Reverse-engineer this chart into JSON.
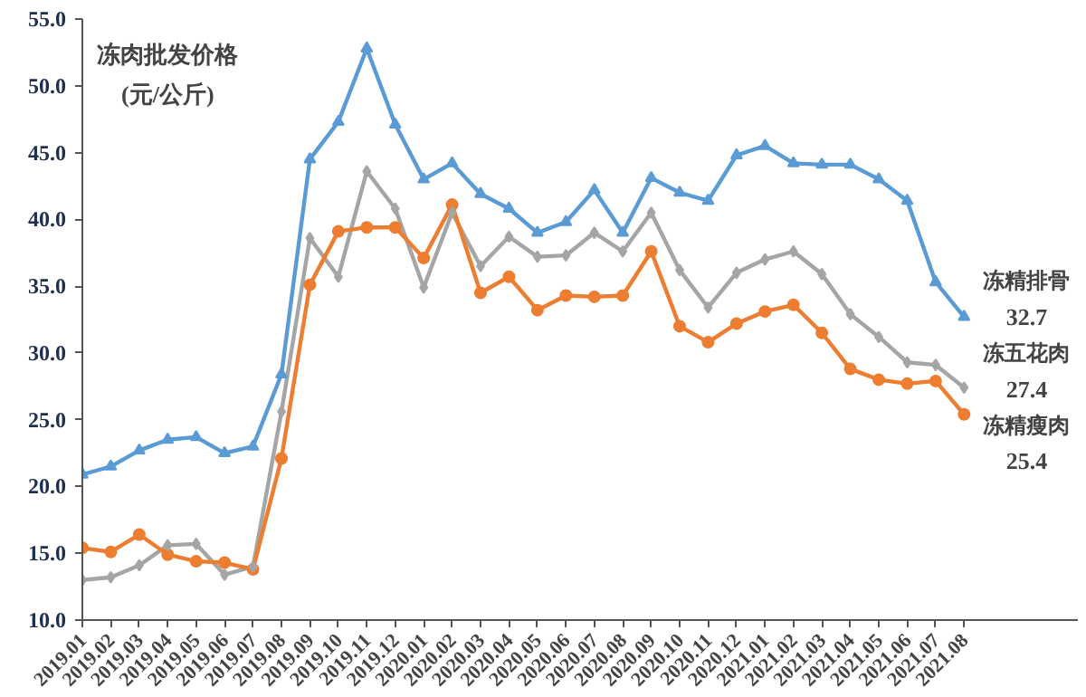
{
  "chart_data": {
    "type": "line",
    "title": "冻肉批发价格",
    "subtitle": "(元/公斤)",
    "categories": [
      "2019.01",
      "2019.02",
      "2019.03",
      "2019.04",
      "2019.05",
      "2019.06",
      "2019.07",
      "2019.08",
      "2019.09",
      "2019.10",
      "2019.11",
      "2019.12",
      "2020.01",
      "2020.02",
      "2020.03",
      "2020.04",
      "2020.05",
      "2020.06",
      "2020.07",
      "2020.08",
      "2020.09",
      "2020.10",
      "2020.11",
      "2020.12",
      "2021.01",
      "2021.02",
      "2021.03",
      "2021.04",
      "2021.05",
      "2021.06",
      "2021.07",
      "2021.08"
    ],
    "series": [
      {
        "name": "冻精排骨",
        "color": "#5b9bd5",
        "marker": "triangle",
        "values": [
          20.9,
          21.5,
          22.7,
          23.5,
          23.7,
          22.5,
          23.0,
          28.4,
          44.5,
          47.3,
          52.8,
          47.1,
          43.0,
          44.2,
          41.9,
          40.8,
          39.0,
          39.8,
          42.2,
          39.0,
          43.1,
          42.0,
          41.4,
          44.8,
          45.5,
          44.2,
          44.1,
          44.1,
          43.0,
          41.4,
          35.3,
          32.7
        ],
        "value_labels": [
          null,
          null,
          null,
          null,
          null,
          null,
          null,
          null,
          null,
          null,
          null,
          null,
          null,
          null,
          null,
          null,
          null,
          null,
          null,
          null,
          null,
          null,
          null,
          null,
          null,
          null,
          null,
          null,
          null,
          null,
          null,
          "32.7"
        ]
      },
      {
        "name": "冻五花肉",
        "color": "#a5a5a5",
        "marker": "diamond",
        "values": [
          13.0,
          13.2,
          14.1,
          15.6,
          15.7,
          13.4,
          14.0,
          25.6,
          38.6,
          35.7,
          43.6,
          40.8,
          34.9,
          40.5,
          36.5,
          38.7,
          37.2,
          37.3,
          39.0,
          37.6,
          40.5,
          36.2,
          33.4,
          36.0,
          37.0,
          37.6,
          35.9,
          32.9,
          31.2,
          29.3,
          29.1,
          27.4
        ],
        "value_labels": [
          null,
          null,
          null,
          null,
          null,
          null,
          null,
          null,
          null,
          null,
          null,
          null,
          null,
          null,
          null,
          null,
          null,
          null,
          null,
          null,
          null,
          null,
          null,
          null,
          null,
          null,
          null,
          null,
          null,
          null,
          null,
          "27.4"
        ]
      },
      {
        "name": "冻精瘦肉",
        "color": "#ed7d31",
        "marker": "circle",
        "values": [
          15.4,
          15.1,
          16.4,
          14.9,
          14.4,
          14.3,
          13.8,
          22.1,
          35.1,
          39.1,
          39.4,
          39.4,
          37.1,
          41.1,
          34.5,
          35.7,
          33.2,
          34.3,
          34.2,
          34.3,
          37.6,
          32.0,
          30.8,
          32.2,
          33.1,
          33.6,
          31.5,
          28.8,
          28.0,
          27.7,
          27.9,
          25.4
        ],
        "value_labels": [
          null,
          null,
          null,
          null,
          null,
          null,
          null,
          null,
          null,
          null,
          null,
          null,
          null,
          null,
          null,
          null,
          null,
          null,
          null,
          null,
          null,
          null,
          null,
          null,
          null,
          null,
          null,
          null,
          null,
          null,
          null,
          "25.4"
        ]
      }
    ],
    "ylim": [
      10,
      55
    ],
    "yticks": [
      {
        "value": 10,
        "label": "10.0"
      },
      {
        "value": 15,
        "label": "15.0"
      },
      {
        "value": 20,
        "label": "20.0"
      },
      {
        "value": 25,
        "label": "25.0"
      },
      {
        "value": 30,
        "label": "30.0"
      },
      {
        "value": 35,
        "label": "35.0"
      },
      {
        "value": 40,
        "label": "40.0"
      },
      {
        "value": 45,
        "label": "45.0"
      },
      {
        "value": 50,
        "label": "50.0"
      },
      {
        "value": 55,
        "label": "55.0"
      }
    ],
    "grid": false,
    "legend": false,
    "line_style": "solid"
  }
}
